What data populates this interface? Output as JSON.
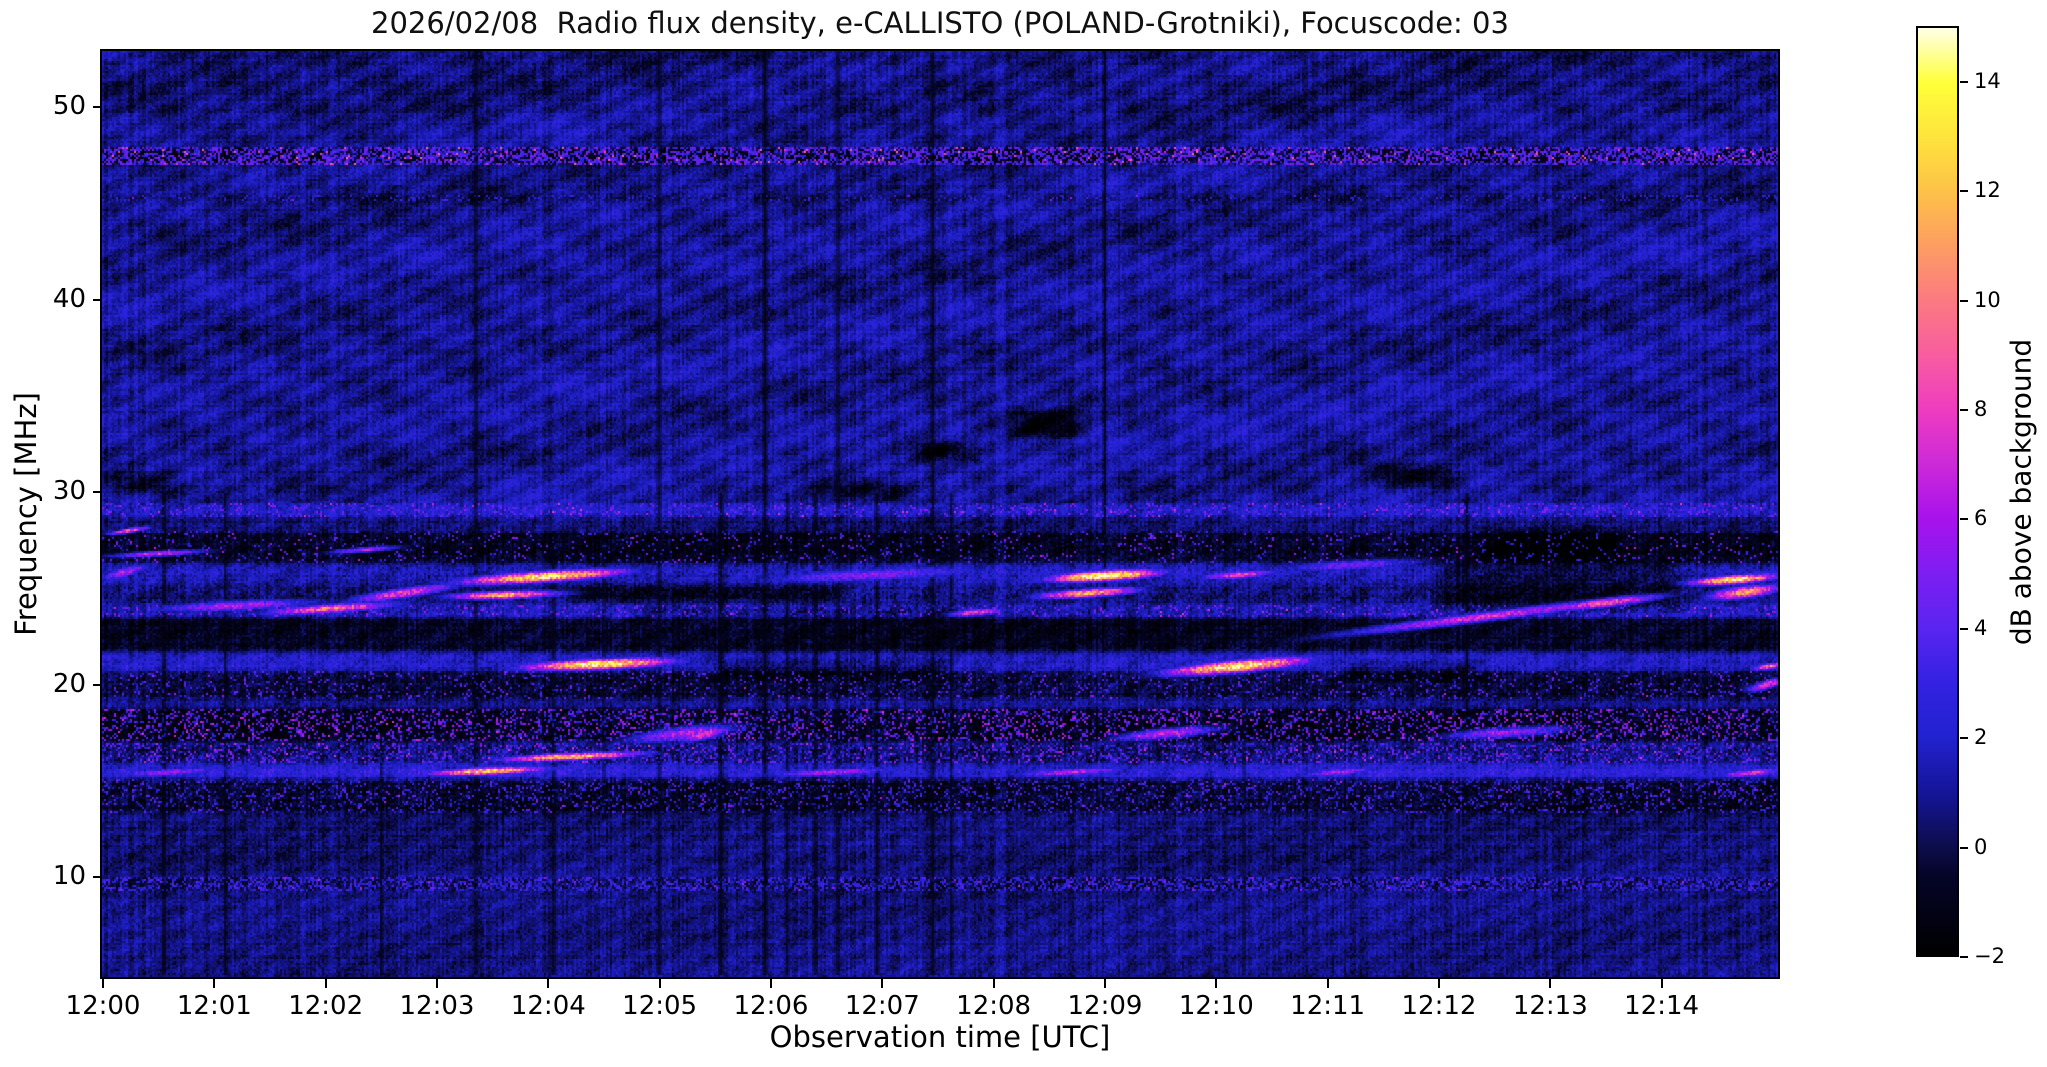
{
  "figure": {
    "title": "2026/02/08  Radio flux density, e-CALLISTO (POLAND-Grotniki), Focuscode: 03",
    "background_color": "#ffffff"
  },
  "chart_data": {
    "type": "heatmap",
    "title": "2026/02/08  Radio flux density, e-CALLISTO (POLAND-Grotniki), Focuscode: 03",
    "xlabel": "Observation time [UTC]",
    "ylabel": "Frequency [MHz]",
    "colorbar_label": "dB above background",
    "x_ticks": [
      "12:00",
      "12:01",
      "12:02",
      "12:03",
      "12:04",
      "12:05",
      "12:06",
      "12:07",
      "12:08",
      "12:09",
      "12:10",
      "12:11",
      "12:12",
      "12:13",
      "12:14"
    ],
    "x_tick_minutes": [
      0,
      1,
      2,
      3,
      4,
      5,
      6,
      7,
      8,
      9,
      10,
      11,
      12,
      13,
      14
    ],
    "x_range_minutes": [
      0,
      15.05
    ],
    "y_ticks_mhz": [
      50,
      40,
      30,
      20,
      10
    ],
    "y_range_mhz": [
      4.8,
      52.9
    ],
    "grid": false,
    "colorbar": {
      "tick_labels": [
        "14",
        "12",
        "10",
        "8",
        "6",
        "4",
        "2",
        "0",
        "−2"
      ],
      "tick_values": [
        14,
        12,
        10,
        8,
        6,
        4,
        2,
        0,
        -2
      ],
      "value_range": [
        -2,
        15
      ],
      "gradient_stops": [
        [
          -2,
          "#000000"
        ],
        [
          -0.5,
          "#05052a"
        ],
        [
          0,
          "#0d0d4d"
        ],
        [
          1,
          "#15159a"
        ],
        [
          2,
          "#2222cf"
        ],
        [
          3,
          "#3322e2"
        ],
        [
          4,
          "#5a25f0"
        ],
        [
          5,
          "#7d1ef2"
        ],
        [
          6,
          "#a812ec"
        ],
        [
          7,
          "#cc29d8"
        ],
        [
          8,
          "#ee3cc0"
        ],
        [
          9,
          "#f85da0"
        ],
        [
          10,
          "#fb7a81"
        ],
        [
          11,
          "#fd9d62"
        ],
        [
          12,
          "#fdc148"
        ],
        [
          13,
          "#fee43c"
        ],
        [
          14,
          "#ffff3a"
        ],
        [
          15,
          "#ffffe8"
        ]
      ]
    },
    "background_level_db": 0.92,
    "bands": [
      {
        "f": [
          49.6,
          52.9
        ],
        "dv": -0.3,
        "var": 0.5
      },
      {
        "f": [
          47.1,
          47.9
        ],
        "dv": -1.9,
        "var": 0.3,
        "speckle": {
          "density": 0.5,
          "v": [
            2,
            5.5
          ],
          "hot": 0.03,
          "hotv": [
            7,
            10
          ]
        }
      },
      {
        "f": [
          45.2,
          45.5
        ],
        "dv": -0.7,
        "var": 0.3,
        "speckle": {
          "density": 0.12,
          "v": [
            1.5,
            3.5
          ],
          "hot": 0.004,
          "hotv": [
            5,
            6
          ]
        }
      },
      {
        "f": [
          28.8,
          29.5
        ],
        "dv": 1.0,
        "var": 1.0,
        "speckle": {
          "density": 0.12,
          "v": [
            3,
            6
          ],
          "hot": 0.01,
          "hotv": [
            6,
            8
          ]
        }
      },
      {
        "f": [
          28.1,
          28.7
        ],
        "dv": -0.6,
        "var": 0.8
      },
      {
        "f": [
          26.4,
          28.0
        ],
        "dv": -1.8,
        "var": 0.7,
        "speckle": {
          "density": 0.06,
          "v": [
            2,
            5
          ],
          "hot": 0.008,
          "hotv": [
            5,
            7
          ]
        }
      },
      {
        "f": [
          25.3,
          26.3
        ],
        "dv": 0.7,
        "var": 1.3
      },
      {
        "f": [
          24.3,
          25.2
        ],
        "dv": -0.2,
        "var": 1.4
      },
      {
        "f": [
          23.6,
          24.2
        ],
        "dv": 0.6,
        "var": 1.3,
        "speckle": {
          "density": 0.1,
          "v": [
            3,
            6
          ],
          "hot": 0.01,
          "hotv": [
            6,
            8
          ]
        }
      },
      {
        "f": [
          21.8,
          23.5
        ],
        "dv": -1.7,
        "var": 0.7
      },
      {
        "f": [
          20.8,
          21.6
        ],
        "dv": 0.9,
        "var": 1.1
      },
      {
        "f": [
          19.3,
          20.7
        ],
        "dv": -1.3,
        "var": 0.9,
        "speckle": {
          "density": 0.08,
          "v": [
            2,
            5
          ],
          "hot": 0.004,
          "hotv": [
            5,
            7
          ]
        }
      },
      {
        "f": [
          18.9,
          19.2
        ],
        "dv": 0.2,
        "var": 0.8
      },
      {
        "f": [
          17.1,
          18.8
        ],
        "dv": -1.9,
        "var": 0.6,
        "speckle": {
          "density": 0.22,
          "v": [
            2,
            6
          ],
          "hot": 0.02,
          "hotv": [
            6,
            8
          ]
        }
      },
      {
        "f": [
          16.0,
          17.0
        ],
        "dv": -0.5,
        "var": 1.3,
        "speckle": {
          "density": 0.2,
          "v": [
            2,
            5.5
          ],
          "hot": 0.01,
          "hotv": [
            6,
            8
          ]
        }
      },
      {
        "f": [
          15.2,
          15.9
        ],
        "dv": 1.3,
        "var": 1.2
      },
      {
        "f": [
          13.4,
          15.1
        ],
        "dv": -1.6,
        "var": 0.8,
        "speckle": {
          "density": 0.15,
          "v": [
            1.5,
            4.5
          ],
          "hot": 0.005,
          "hotv": [
            5,
            7
          ]
        }
      },
      {
        "f": [
          10.2,
          13.3
        ],
        "dv": -0.45,
        "var": 0.6
      },
      {
        "f": [
          9.4,
          10.0
        ],
        "dv": -1.1,
        "var": 0.5,
        "speckle": {
          "density": 0.4,
          "v": [
            1.5,
            4
          ],
          "hot": 0.01,
          "hotv": [
            5,
            7
          ]
        }
      },
      {
        "f": [
          4.8,
          9.3
        ],
        "dv": -0.25,
        "var": 0.5
      }
    ],
    "bursts": [
      {
        "t": [
          1.3,
          2.8
        ],
        "f": [
          23.7,
          24.3
        ],
        "peak": 9.5,
        "wf": 0.25
      },
      {
        "t": [
          2.1,
          3.3
        ],
        "f": [
          24.3,
          25.3
        ],
        "peak": 8,
        "wf": 0.3
      },
      {
        "t": [
          3.0,
          4.9
        ],
        "f": [
          25.3,
          26.0
        ],
        "peak": 13.5,
        "wf": 0.3
      },
      {
        "t": [
          3.0,
          4.2
        ],
        "f": [
          24.6,
          24.8
        ],
        "peak": 11.5,
        "wf": 0.22
      },
      {
        "t": [
          0.2,
          2.2
        ],
        "f": [
          23.9,
          24.4
        ],
        "peak": 6,
        "wf": 0.3
      },
      {
        "t": [
          3.6,
          5.3
        ],
        "f": [
          20.9,
          21.3
        ],
        "peak": 14.5,
        "wf": 0.28
      },
      {
        "t": [
          8.4,
          9.6
        ],
        "f": [
          25.5,
          25.9
        ],
        "peak": 15,
        "wf": 0.28
      },
      {
        "t": [
          8.3,
          9.4
        ],
        "f": [
          24.6,
          25.0
        ],
        "peak": 11,
        "wf": 0.24
      },
      {
        "t": [
          7.6,
          8.1
        ],
        "f": [
          23.7,
          23.9
        ],
        "peak": 8,
        "wf": 0.2
      },
      {
        "t": [
          9.4,
          11.0
        ],
        "f": [
          20.6,
          21.4
        ],
        "peak": 14,
        "wf": 0.33
      },
      {
        "t": [
          9.8,
          10.6
        ],
        "f": [
          25.6,
          25.9
        ],
        "peak": 7.5,
        "wf": 0.22
      },
      {
        "t": [
          10.6,
          14.3
        ],
        "f": [
          22.3,
          24.9
        ],
        "peak": 7,
        "wf": 0.28
      },
      {
        "t": [
          12.9,
          14.1
        ],
        "f": [
          23.9,
          24.7
        ],
        "peak": 9,
        "wf": 0.25
      },
      {
        "t": [
          14.2,
          15.1
        ],
        "f": [
          25.3,
          25.7
        ],
        "peak": 13.5,
        "wf": 0.24
      },
      {
        "t": [
          14.4,
          15.1
        ],
        "f": [
          24.6,
          25.1
        ],
        "peak": 11,
        "wf": 0.33
      },
      {
        "t": [
          14.85,
          15.1
        ],
        "f": [
          20.9,
          21.1
        ],
        "peak": 9.5,
        "wf": 0.18
      },
      {
        "t": [
          14.8,
          15.1
        ],
        "f": [
          19.8,
          20.3
        ],
        "peak": 8,
        "wf": 0.25
      },
      {
        "t": [
          3.4,
          5.0
        ],
        "f": [
          16.1,
          16.5
        ],
        "peak": 12,
        "wf": 0.2
      },
      {
        "t": [
          2.8,
          4.1
        ],
        "f": [
          15.4,
          15.7
        ],
        "peak": 12.5,
        "wf": 0.2
      },
      {
        "t": [
          5.2,
          5.6
        ],
        "f": [
          17.2,
          17.7
        ],
        "peak": 8,
        "wf": 0.3
      },
      {
        "t": [
          4.6,
          5.8
        ],
        "f": [
          17.1,
          17.9
        ],
        "peak": 6,
        "wf": 0.4
      },
      {
        "t": [
          9.0,
          10.1
        ],
        "f": [
          17.2,
          17.8
        ],
        "peak": 6.5,
        "wf": 0.3
      },
      {
        "t": [
          11.9,
          13.3
        ],
        "f": [
          17.3,
          17.8
        ],
        "peak": 5.5,
        "wf": 0.3
      },
      {
        "t": [
          0.08,
          0.4
        ],
        "f": [
          27.9,
          28.2
        ],
        "peak": 8.5,
        "wf": 0.14
      },
      {
        "t": [
          0.0,
          0.4
        ],
        "f": [
          25.6,
          26.2
        ],
        "peak": 6,
        "wf": 0.3
      },
      {
        "t": [
          0.0,
          1.0
        ],
        "f": [
          26.7,
          27.0
        ],
        "peak": 7,
        "wf": 0.15
      },
      {
        "t": [
          2.0,
          2.7
        ],
        "f": [
          26.9,
          27.2
        ],
        "peak": 6,
        "wf": 0.15
      },
      {
        "t": [
          5.5,
          8.3
        ],
        "f": [
          25.4,
          26.1
        ],
        "peak": 5,
        "wf": 0.38
      },
      {
        "t": [
          10.3,
          12.1
        ],
        "f": [
          26.0,
          26.5
        ],
        "peak": 4.5,
        "wf": 0.3
      },
      {
        "t": [
          0.0,
          1.2
        ],
        "f": [
          15.3,
          15.7
        ],
        "peak": 5.5,
        "wf": 0.22
      },
      {
        "t": [
          5.8,
          7.3
        ],
        "f": [
          15.3,
          15.7
        ],
        "peak": 6,
        "wf": 0.2
      },
      {
        "t": [
          8.1,
          9.3
        ],
        "f": [
          15.3,
          15.7
        ],
        "peak": 6.5,
        "wf": 0.2
      },
      {
        "t": [
          10.7,
          11.5
        ],
        "f": [
          15.3,
          15.7
        ],
        "peak": 6,
        "wf": 0.2
      },
      {
        "t": [
          14.5,
          15.1
        ],
        "f": [
          15.3,
          15.6
        ],
        "peak": 7.5,
        "wf": 0.2
      }
    ],
    "dark_patches": [
      {
        "t": [
          8.2,
          8.8
        ],
        "f": [
          33.0,
          34.3
        ],
        "dv": -2.5
      },
      {
        "t": [
          7.3,
          7.8
        ],
        "f": [
          31.8,
          32.6
        ],
        "dv": -2.0
      },
      {
        "t": [
          11.4,
          12.2
        ],
        "f": [
          30.4,
          31.4
        ],
        "dv": -2.0
      },
      {
        "t": [
          0.0,
          0.6
        ],
        "f": [
          30.0,
          31.0
        ],
        "dv": -1.5
      },
      {
        "t": [
          6.3,
          7.3
        ],
        "f": [
          29.6,
          30.6
        ],
        "dv": -1.5
      },
      {
        "t": [
          12.4,
          13.6
        ],
        "f": [
          26.5,
          28.2
        ],
        "dv": -1.2
      },
      {
        "t": [
          12.0,
          14.2
        ],
        "f": [
          23.9,
          26.4
        ],
        "dv": -1.6
      },
      {
        "t": [
          4.2,
          6.6
        ],
        "f": [
          24.4,
          25.2
        ],
        "dv": -1.8
      },
      {
        "t": [
          4.8,
          7.8
        ],
        "f": [
          23.5,
          24.2
        ],
        "dv": -1.0
      },
      {
        "t": [
          5.5,
          7.6
        ],
        "f": [
          20.4,
          21.3
        ],
        "dv": -1.3
      },
      {
        "t": [
          11.1,
          12.4
        ],
        "f": [
          20.3,
          21.3
        ],
        "dv": -1.3
      }
    ],
    "vertical_streaks": [
      {
        "t": 0.55,
        "f": [
          5,
          30
        ],
        "w": 0.03
      },
      {
        "t": 1.1,
        "f": [
          5,
          30
        ],
        "w": 0.02
      },
      {
        "t": 2.5,
        "f": [
          5,
          18
        ],
        "w": 0.02
      },
      {
        "t": 3.35,
        "f": [
          5,
          53
        ],
        "w": 0.025
      },
      {
        "t": 4.05,
        "f": [
          5,
          28
        ],
        "w": 0.03
      },
      {
        "t": 4.5,
        "f": [
          13,
          28
        ],
        "w": 0.025
      },
      {
        "t": 5.0,
        "f": [
          5,
          53
        ],
        "w": 0.03
      },
      {
        "t": 5.55,
        "f": [
          5,
          30
        ],
        "w": 0.035
      },
      {
        "t": 5.95,
        "f": [
          5,
          53
        ],
        "w": 0.03
      },
      {
        "t": 6.15,
        "f": [
          5,
          30
        ],
        "w": 0.02
      },
      {
        "t": 6.4,
        "f": [
          5,
          30
        ],
        "w": 0.03
      },
      {
        "t": 6.6,
        "f": [
          5,
          53
        ],
        "w": 0.025
      },
      {
        "t": 6.95,
        "f": [
          5,
          30
        ],
        "w": 0.03
      },
      {
        "t": 7.45,
        "f": [
          5,
          53
        ],
        "w": 0.03
      },
      {
        "t": 7.62,
        "f": [
          5,
          30
        ],
        "w": 0.025
      },
      {
        "t": 9.0,
        "f": [
          24,
          53
        ],
        "w": 0.02
      },
      {
        "t": 10.25,
        "f": [
          5,
          20
        ],
        "w": 0.02
      },
      {
        "t": 12.25,
        "f": [
          18,
          30
        ],
        "w": 0.025
      }
    ]
  }
}
